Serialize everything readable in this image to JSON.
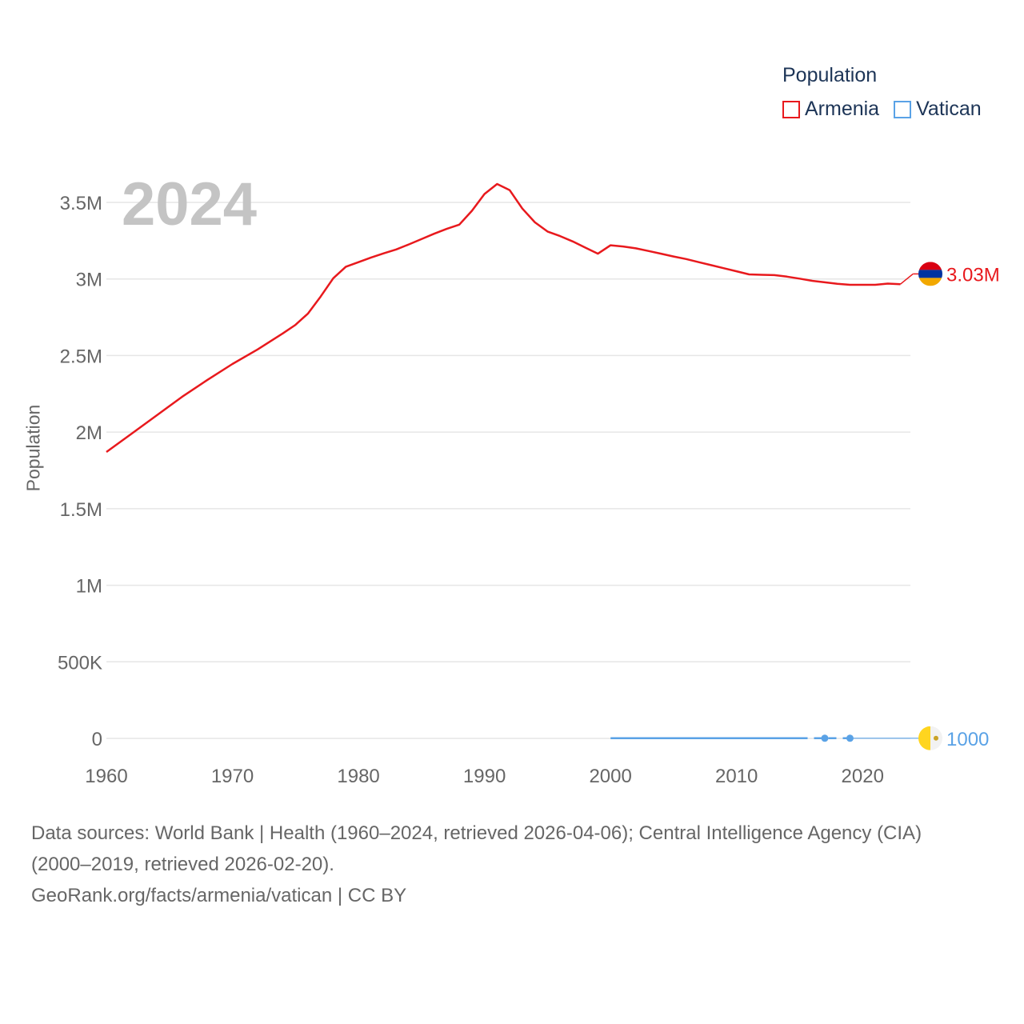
{
  "legend": {
    "title": "Population",
    "items": [
      {
        "label": "Armenia",
        "color": "#e8191d"
      },
      {
        "label": "Vatican",
        "color": "#5aa2e6"
      }
    ]
  },
  "year_label": "2024",
  "chart_data": {
    "type": "line",
    "title": "",
    "xlabel": "",
    "ylabel": "Population",
    "xlim": [
      1960,
      2024
    ],
    "ylim": [
      0,
      3750000
    ],
    "x_ticks": [
      1960,
      1970,
      1980,
      1990,
      2000,
      2010,
      2020
    ],
    "y_ticks": [
      {
        "value": 0,
        "label": "0"
      },
      {
        "value": 500000,
        "label": "500K"
      },
      {
        "value": 1000000,
        "label": "1M"
      },
      {
        "value": 1500000,
        "label": "1.5M"
      },
      {
        "value": 2000000,
        "label": "2M"
      },
      {
        "value": 2500000,
        "label": "2.5M"
      },
      {
        "value": 3000000,
        "label": "3M"
      },
      {
        "value": 3500000,
        "label": "3.5M"
      }
    ],
    "grid": true,
    "series": [
      {
        "name": "Armenia",
        "color": "#e8191d",
        "end_label": "3.03M",
        "flag": "armenia",
        "x": [
          1960,
          1962,
          1964,
          1966,
          1968,
          1970,
          1972,
          1974,
          1975,
          1976,
          1977,
          1978,
          1979,
          1980,
          1981,
          1982,
          1983,
          1984,
          1985,
          1986,
          1987,
          1988,
          1989,
          1990,
          1991,
          1992,
          1993,
          1994,
          1995,
          1996,
          1997,
          1998,
          1999,
          2000,
          2001,
          2002,
          2003,
          2004,
          2005,
          2006,
          2007,
          2008,
          2009,
          2010,
          2011,
          2012,
          2013,
          2014,
          2015,
          2016,
          2017,
          2018,
          2019,
          2020,
          2021,
          2022,
          2023,
          2024
        ],
        "values": [
          1870000,
          1990000,
          2110000,
          2230000,
          2340000,
          2445000,
          2540000,
          2645000,
          2700000,
          2775000,
          2885000,
          3005000,
          3080000,
          3110000,
          3140000,
          3167000,
          3193000,
          3226000,
          3260000,
          3295000,
          3327000,
          3355000,
          3445000,
          3555000,
          3620000,
          3580000,
          3460000,
          3370000,
          3310000,
          3280000,
          3245000,
          3205000,
          3165000,
          3220000,
          3212000,
          3200000,
          3183000,
          3165000,
          3147000,
          3130000,
          3110000,
          3090000,
          3070000,
          3050000,
          3030000,
          3027000,
          3025000,
          3015000,
          3002000,
          2988000,
          2978000,
          2968000,
          2962000,
          2962000,
          2962000,
          2970000,
          2966000,
          3033000
        ],
        "dashed_from": 2023
      },
      {
        "name": "Vatican",
        "color": "#5aa2e6",
        "end_label": "1000",
        "flag": "vatican",
        "x": [
          2000,
          2001,
          2002,
          2003,
          2004,
          2005,
          2006,
          2007,
          2008,
          2009,
          2010,
          2011,
          2012,
          2013,
          2014,
          2015,
          2017,
          2019
        ],
        "values": [
          870,
          870,
          870,
          870,
          870,
          870,
          870,
          870,
          870,
          870,
          870,
          870,
          870,
          870,
          870,
          870,
          1000,
          1000
        ],
        "solid_until": 2015,
        "markers": [
          2017,
          2019
        ],
        "projection_to": 2024
      }
    ]
  },
  "footer": {
    "line1": "Data sources: World Bank | Health (1960–2024, retrieved 2026-04-06); Central Intelligence Agency (CIA)",
    "line2": "(2000–2019, retrieved 2026-02-20).",
    "line3": "GeoRank.org/facts/armenia/vatican | CC BY"
  }
}
